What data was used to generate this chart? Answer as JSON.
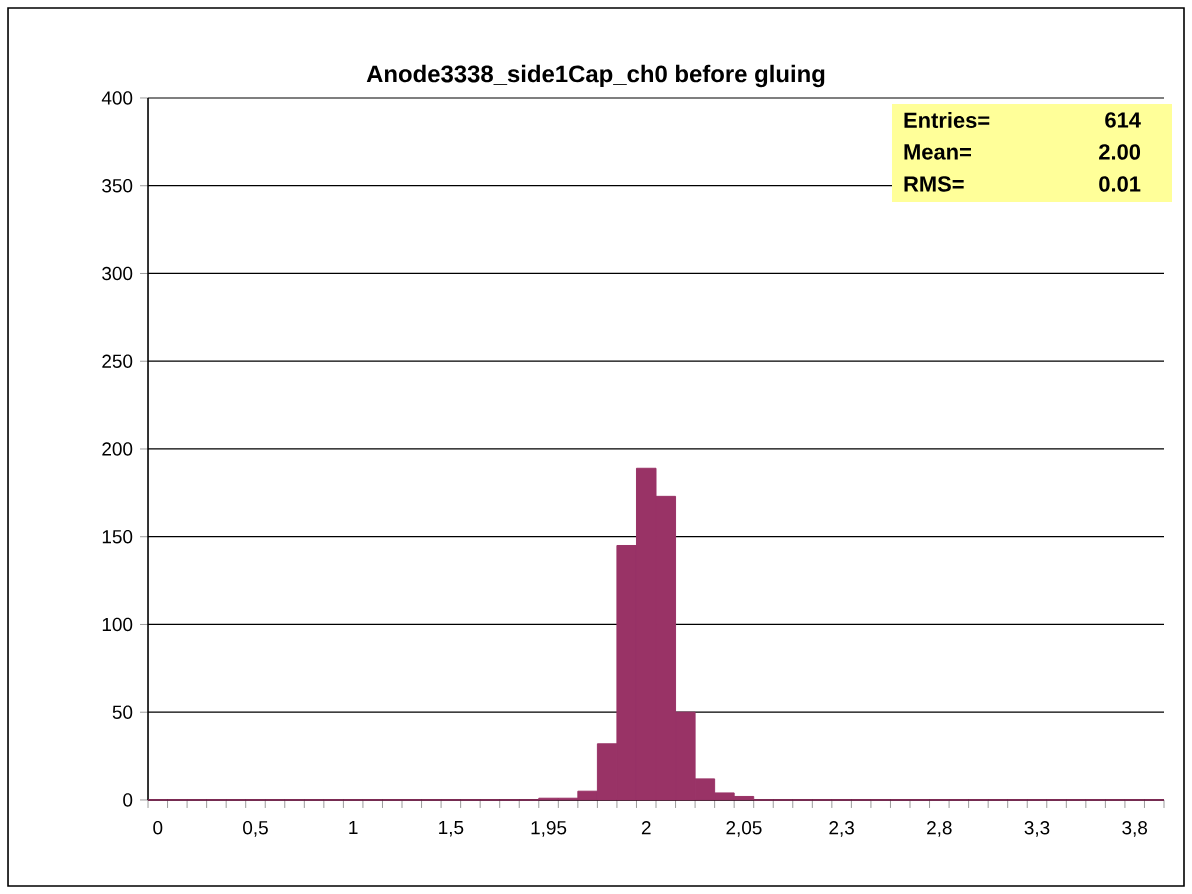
{
  "chart_data": {
    "type": "bar",
    "title": "Anode3338_side1Cap_ch0  before gluing",
    "categories": [
      "0",
      null,
      null,
      null,
      null,
      "0,5",
      null,
      null,
      null,
      null,
      "1",
      null,
      null,
      null,
      null,
      "1,5",
      null,
      null,
      null,
      null,
      "1,95",
      null,
      null,
      null,
      null,
      "2",
      null,
      null,
      null,
      null,
      "2,05",
      null,
      null,
      null,
      null,
      "2,3",
      null,
      null,
      null,
      null,
      "2,8",
      null,
      null,
      null,
      null,
      "3,3",
      null,
      null,
      null,
      null,
      "3,8",
      null
    ],
    "values": [
      0,
      0,
      0,
      0,
      0,
      0,
      0,
      0,
      0,
      0,
      0,
      0,
      0,
      0,
      0,
      0,
      0,
      0,
      0,
      0,
      1,
      1,
      5,
      32,
      145,
      189,
      173,
      50,
      12,
      4,
      2,
      0,
      0,
      0,
      0,
      0,
      0,
      0,
      0,
      0,
      0,
      0,
      0,
      0,
      0,
      0,
      0,
      0,
      0,
      0,
      0,
      0
    ],
    "color": "#993366",
    "ylim": [
      0,
      400
    ],
    "yticks": [
      0,
      50,
      100,
      150,
      200,
      250,
      300,
      350,
      400
    ],
    "grid": "y",
    "annotations": [
      "Entries=",
      "614",
      "Mean=",
      "2.00",
      "RMS=",
      "0.01"
    ]
  }
}
